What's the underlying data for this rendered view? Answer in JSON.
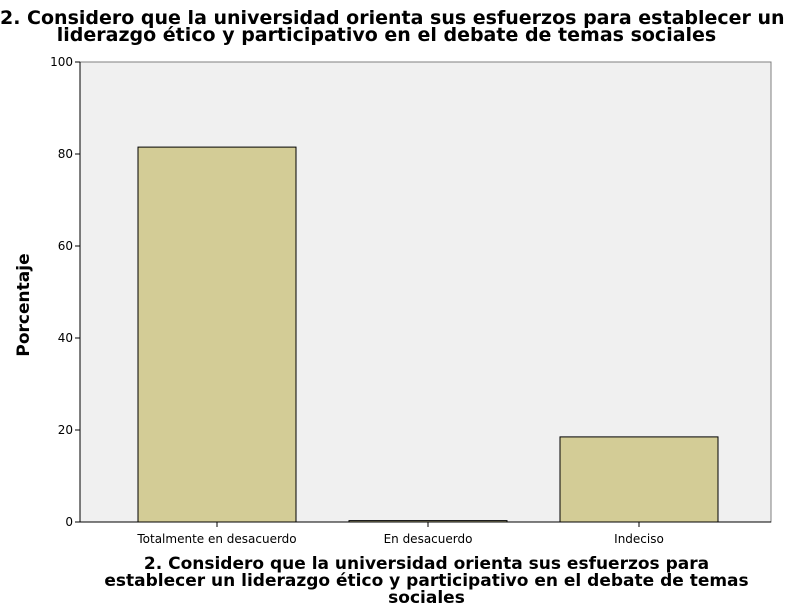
{
  "chart_data": {
    "type": "bar",
    "title_lines": [
      "2. Considero que la universidad orienta sus esfuerzos para establecer un",
      "liderazgo ético y participativo en el debate de temas sociales"
    ],
    "xlabel_lines": [
      "2. Considero que la universidad orienta sus esfuerzos para",
      "establecer un liderazgo ético y participativo en el debate de temas",
      "sociales"
    ],
    "ylabel": "Porcentaje",
    "categories": [
      "Totalmente en desacuerdo",
      "En desacuerdo",
      "Indeciso"
    ],
    "values": [
      81.5,
      0.3,
      18.5
    ],
    "ylim": [
      0,
      100
    ],
    "yticks": [
      0,
      20,
      40,
      60,
      80,
      100
    ],
    "grid": false,
    "bar_color": "#d3cc96",
    "plot_background": "#f0f0f0"
  }
}
